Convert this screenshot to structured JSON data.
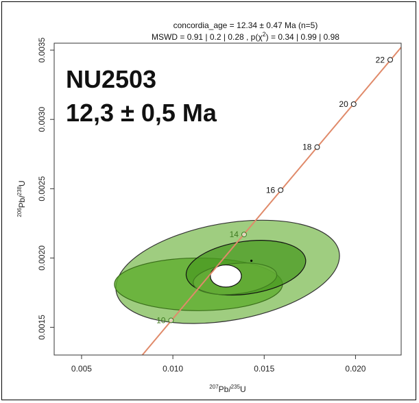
{
  "chart_data": {
    "type": "scatter",
    "title_line1": "concordia_age = 12.34 ± 0.47 Ma (n=5)",
    "title_line2_prefix": "MSWD = 0.91 | 0.2 | 0.28 , p(χ",
    "title_line2_sup": "2",
    "title_line2_suffix": ") = 0.34 | 0.99 | 0.98",
    "sample_name": "NU2503",
    "sample_age": "12,3 ± 0,5 Ma",
    "xlabel": {
      "sup1": "207",
      "base1": "Pb/",
      "sup2": "235",
      "base2": "U"
    },
    "ylabel": {
      "sup1": "206",
      "base1": "Pb/",
      "sup2": "238",
      "base2": "U"
    },
    "xlim": [
      0.0035,
      0.0225
    ],
    "ylim": [
      0.0013,
      0.00355
    ],
    "x_ticks": [
      {
        "value": 0.005,
        "label": "0.005"
      },
      {
        "value": 0.01,
        "label": "0.010"
      },
      {
        "value": 0.015,
        "label": "0.015"
      },
      {
        "value": 0.02,
        "label": "0.020"
      }
    ],
    "y_ticks": [
      {
        "value": 0.0015,
        "label": "0.0015"
      },
      {
        "value": 0.002,
        "label": "0.0020"
      },
      {
        "value": 0.0025,
        "label": "0.0025"
      },
      {
        "value": 0.003,
        "label": "0.0030"
      },
      {
        "value": 0.0035,
        "label": "0.0035"
      }
    ],
    "concordia_points": [
      {
        "age": "10",
        "x": 0.0099,
        "y": 0.00155
      },
      {
        "age": "14",
        "x": 0.0139,
        "y": 0.00217
      },
      {
        "age": "16",
        "x": 0.0159,
        "y": 0.00249
      },
      {
        "age": "18",
        "x": 0.0179,
        "y": 0.0028
      },
      {
        "age": "20",
        "x": 0.0199,
        "y": 0.00311
      },
      {
        "age": "22",
        "x": 0.0219,
        "y": 0.00343
      }
    ],
    "concordia_line": {
      "x": [
        0.0082,
        0.0225
      ],
      "y": [
        0.00128,
        0.00352
      ]
    },
    "concordia_age_point": {
      "x": 0.0143,
      "y": 0.00198
    },
    "ellipses": [
      {
        "cx": 0.013,
        "cy": 0.0019,
        "rx": 0.0062,
        "ry": 0.00035,
        "rot": 10,
        "fill": "#8ec46a",
        "opacity": 0.85,
        "stroke": "#333333"
      },
      {
        "cx": 0.0114,
        "cy": 0.00181,
        "rx": 0.0046,
        "ry": 0.00019,
        "rot": 0,
        "fill": "#5fae2e",
        "opacity": 0.8,
        "stroke": "#3a6e1a"
      },
      {
        "cx": 0.014,
        "cy": 0.00193,
        "rx": 0.0033,
        "ry": 0.00019,
        "rot": 8,
        "fill": "#4a9a22",
        "opacity": 0.75,
        "stroke": "#111111"
      },
      {
        "cx": 0.0134,
        "cy": 0.00185,
        "rx": 0.0023,
        "ry": 0.00011,
        "rot": 6,
        "fill": "#6fb540",
        "opacity": 0.55,
        "stroke": "#3f7a20"
      },
      {
        "cx": 0.0129,
        "cy": 0.00187,
        "rx": 0.00085,
        "ry": 8e-05,
        "rot": 0,
        "fill": "#ffffff",
        "opacity": 1,
        "stroke": "#111111"
      }
    ],
    "colors": {
      "concordia": "#e08a6a",
      "text_age_inside": "#3f7a20",
      "axis": "#333333"
    }
  }
}
